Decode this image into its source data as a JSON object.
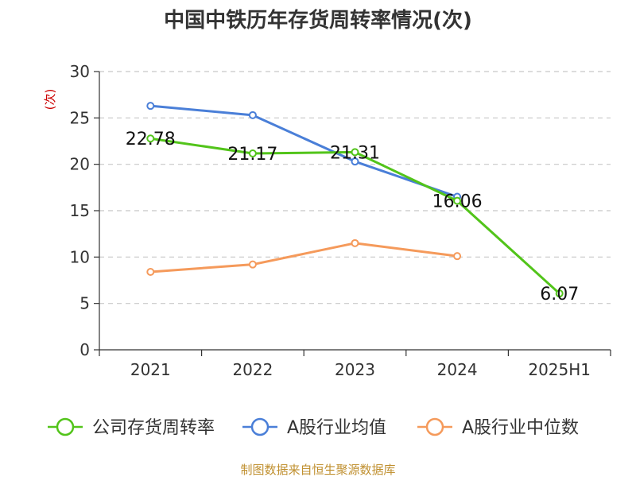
{
  "chart_data": {
    "type": "line",
    "title": "中国中铁历年存货周转率情况(次)",
    "ylabel": "(次)",
    "xlabel": "",
    "categories": [
      "2021",
      "2022",
      "2023",
      "2024",
      "2025H1"
    ],
    "ylim": [
      0,
      30
    ],
    "yticks": [
      0,
      5,
      10,
      15,
      20,
      25,
      30
    ],
    "grid": true,
    "legend_position": "bottom",
    "series": [
      {
        "name": "公司存货周转率",
        "color": "#52c41a",
        "values": [
          22.78,
          21.17,
          21.31,
          16.06,
          6.07
        ],
        "data_labels": [
          "22.78",
          "21.17",
          "21.31",
          "16.06",
          "6.07"
        ]
      },
      {
        "name": "A股行业均值",
        "color": "#4a7fd8",
        "values": [
          26.3,
          25.3,
          20.3,
          16.5,
          null
        ]
      },
      {
        "name": "A股行业中位数",
        "color": "#f59a5b",
        "values": [
          8.4,
          9.2,
          11.5,
          10.1,
          null
        ]
      }
    ],
    "source": "制图数据来自恒生聚源数据库"
  }
}
